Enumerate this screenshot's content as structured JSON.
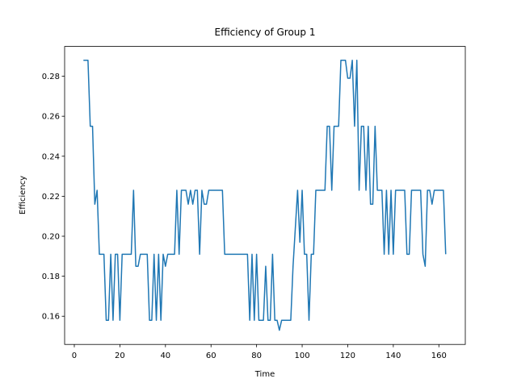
{
  "chart_data": {
    "type": "line",
    "title": "Efficiency of Group 1",
    "x_label": "Time",
    "y_label": "Efficiency",
    "x": [
      4,
      5,
      6,
      7,
      8,
      9,
      10,
      11,
      12,
      13,
      14,
      15,
      16,
      17,
      18,
      19,
      20,
      21,
      22,
      23,
      24,
      25,
      26,
      27,
      28,
      29,
      30,
      31,
      32,
      33,
      34,
      35,
      36,
      37,
      38,
      39,
      40,
      41,
      42,
      43,
      44,
      45,
      46,
      47,
      48,
      49,
      50,
      51,
      52,
      53,
      54,
      55,
      56,
      57,
      58,
      59,
      60,
      61,
      62,
      63,
      64,
      65,
      66,
      67,
      68,
      69,
      70,
      71,
      72,
      73,
      74,
      75,
      76,
      77,
      78,
      79,
      80,
      81,
      82,
      83,
      84,
      85,
      86,
      87,
      88,
      89,
      90,
      91,
      92,
      93,
      94,
      95,
      96,
      97,
      98,
      99,
      100,
      101,
      102,
      103,
      104,
      105,
      106,
      107,
      108,
      109,
      110,
      111,
      112,
      113,
      114,
      115,
      116,
      117,
      118,
      119,
      120,
      121,
      122,
      123,
      124,
      125,
      126,
      127,
      128,
      129,
      130,
      131,
      132,
      133,
      134,
      135,
      136,
      137,
      138,
      139,
      140,
      141,
      142,
      143,
      144,
      145,
      146,
      147,
      148,
      149,
      150,
      151,
      152,
      153,
      154,
      155,
      156,
      157,
      158,
      159,
      160,
      161,
      162,
      163
    ],
    "series": [
      {
        "color": "#1f77b4",
        "values": [
          0.288,
          0.288,
          0.288,
          0.255,
          0.255,
          0.216,
          0.223,
          0.191,
          0.191,
          0.191,
          0.158,
          0.158,
          0.191,
          0.158,
          0.191,
          0.191,
          0.158,
          0.191,
          0.191,
          0.191,
          0.191,
          0.191,
          0.223,
          0.185,
          0.185,
          0.191,
          0.191,
          0.191,
          0.191,
          0.158,
          0.158,
          0.191,
          0.158,
          0.191,
          0.158,
          0.191,
          0.185,
          0.191,
          0.191,
          0.191,
          0.191,
          0.223,
          0.191,
          0.223,
          0.223,
          0.223,
          0.216,
          0.223,
          0.216,
          0.223,
          0.223,
          0.191,
          0.223,
          0.216,
          0.216,
          0.223,
          0.223,
          0.223,
          0.223,
          0.223,
          0.223,
          0.223,
          0.191,
          0.191,
          0.191,
          0.191,
          0.191,
          0.191,
          0.191,
          0.191,
          0.191,
          0.191,
          0.191,
          0.158,
          0.191,
          0.158,
          0.191,
          0.158,
          0.158,
          0.158,
          0.185,
          0.158,
          0.158,
          0.191,
          0.158,
          0.158,
          0.153,
          0.158,
          0.158,
          0.158,
          0.158,
          0.158,
          0.185,
          0.204,
          0.223,
          0.197,
          0.223,
          0.191,
          0.191,
          0.158,
          0.191,
          0.191,
          0.223,
          0.223,
          0.223,
          0.223,
          0.223,
          0.255,
          0.255,
          0.223,
          0.255,
          0.255,
          0.255,
          0.288,
          0.288,
          0.288,
          0.279,
          0.279,
          0.288,
          0.255,
          0.288,
          0.223,
          0.255,
          0.255,
          0.223,
          0.255,
          0.216,
          0.216,
          0.255,
          0.223,
          0.223,
          0.223,
          0.191,
          0.223,
          0.191,
          0.223,
          0.191,
          0.223,
          0.223,
          0.223,
          0.223,
          0.223,
          0.191,
          0.191,
          0.223,
          0.223,
          0.223,
          0.223,
          0.223,
          0.191,
          0.185,
          0.223,
          0.223,
          0.216,
          0.223,
          0.223,
          0.223,
          0.223,
          0.223,
          0.191
        ]
      }
    ],
    "xlim": [
      -4.25,
      171.6
    ],
    "ylim": [
      0.1459,
      0.2949
    ],
    "xticks": [
      0,
      20,
      40,
      60,
      80,
      100,
      120,
      140,
      160
    ],
    "yticks": [
      0.16,
      0.18,
      {
        "value": 0.2,
        "label": "0.20"
      },
      0.22,
      0.24,
      0.26,
      0.28
    ]
  }
}
